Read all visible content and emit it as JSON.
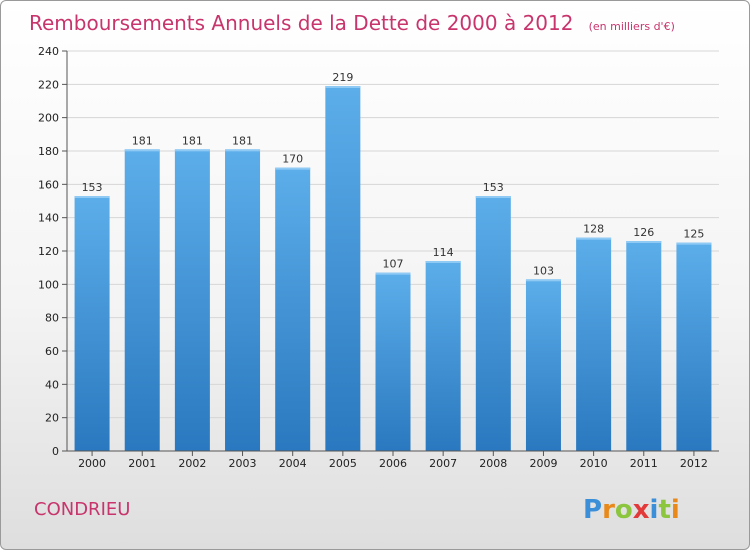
{
  "chart_data": {
    "type": "bar",
    "title": "Remboursements Annuels de la Dette de 2000 à 2012",
    "subtitle": "(en milliers d'€)",
    "xlabel": "",
    "ylabel": "",
    "categories": [
      "2000",
      "2001",
      "2002",
      "2003",
      "2004",
      "2005",
      "2006",
      "2007",
      "2008",
      "2009",
      "2010",
      "2011",
      "2012"
    ],
    "values": [
      153,
      181,
      181,
      181,
      170,
      219,
      107,
      114,
      153,
      103,
      128,
      126,
      125
    ],
    "ylim": [
      0,
      240
    ],
    "yticks": [
      0,
      20,
      40,
      60,
      80,
      100,
      120,
      140,
      160,
      180,
      200,
      220,
      240
    ],
    "grid": true,
    "bar_color": "#4a9fe0"
  },
  "commune": "CONDRIEU",
  "logo": {
    "letters": [
      "P",
      "r",
      "o",
      "x",
      "i",
      "t",
      "i"
    ],
    "colors": [
      "#3a8fd8",
      "#e8891a",
      "#8cc63f",
      "#e23a3a",
      "#3a8fd8",
      "#8cc63f",
      "#e8891a"
    ]
  }
}
